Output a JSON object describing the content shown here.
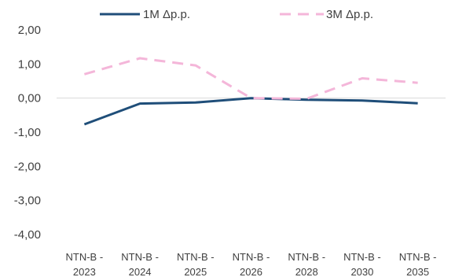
{
  "chart_data": {
    "type": "line",
    "categories": [
      [
        "NTN-B -",
        "2023"
      ],
      [
        "NTN-B -",
        "2024"
      ],
      [
        "NTN-B -",
        "2025"
      ],
      [
        "NTN-B -",
        "2026"
      ],
      [
        "NTN-B -",
        "2028"
      ],
      [
        "NTN-B -",
        "2030"
      ],
      [
        "NTN-B -",
        "2035"
      ]
    ],
    "series": [
      {
        "name": "1M Δp.p.",
        "values": [
          -0.77,
          -0.16,
          -0.13,
          0.0,
          -0.05,
          -0.07,
          -0.15
        ],
        "color": "#1f4e79",
        "dash": "solid"
      },
      {
        "name": "3M Δp.p.",
        "values": [
          0.7,
          1.17,
          0.96,
          0.0,
          -0.02,
          0.58,
          0.45
        ],
        "color": "#f4b6d9",
        "dash": "dashed"
      }
    ],
    "y_ticks": [
      "2,00",
      "1,00",
      "0,00",
      "-1,00",
      "-2,00",
      "-3,00",
      "-4,00"
    ],
    "ylim": [
      -4,
      2
    ],
    "legend_position": "top",
    "grid": false
  }
}
